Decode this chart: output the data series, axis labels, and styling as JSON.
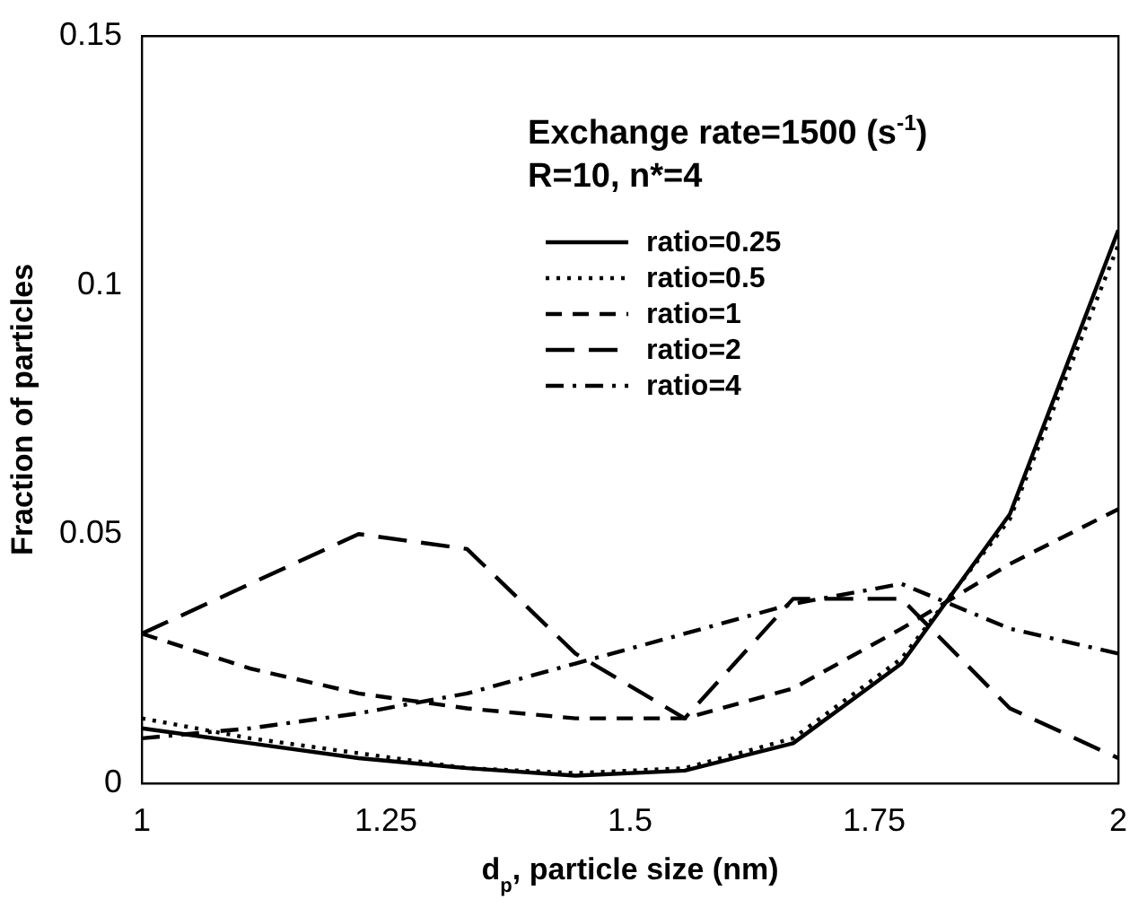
{
  "chart_data": {
    "type": "line",
    "xlabel": "d$_{p}$, particle size (nm)",
    "ylabel": "Fraction of particles",
    "x": [
      1,
      1.111,
      1.222,
      1.333,
      1.444,
      1.556,
      1.667,
      1.778,
      1.889,
      2
    ],
    "xlim": [
      1,
      2
    ],
    "xticks": [
      1,
      1.25,
      1.5,
      1.75,
      2
    ],
    "ylim": [
      0,
      0.15
    ],
    "yticks": [
      0,
      0.05,
      0.1,
      0.15
    ],
    "grid": false,
    "legend": "top right",
    "marker": "none",
    "annotations": [
      "Exchange rate=1500 (s$^{-1}$)",
      "R=10, n*=4"
    ],
    "series": [
      {
        "name": "ratio=0.25",
        "color": "#000000",
        "line_style": "solid",
        "values": [
          0.011,
          0.008,
          0.005,
          0.003,
          0.0015,
          0.0025,
          0.008,
          0.024,
          0.054,
          0.111
        ]
      },
      {
        "name": "ratio=0.5",
        "color": "#000000",
        "line_style": "dotted",
        "values": [
          0.013,
          0.009,
          0.006,
          0.003,
          0.002,
          0.003,
          0.009,
          0.025,
          0.053,
          0.108
        ]
      },
      {
        "name": "ratio=1",
        "color": "#000000",
        "line_style": "dashed",
        "values": [
          0.03,
          0.023,
          0.018,
          0.015,
          0.013,
          0.013,
          0.019,
          0.031,
          0.044,
          0.055
        ]
      },
      {
        "name": "ratio=2",
        "color": "#000000",
        "line_style": "longdash",
        "values": [
          0.03,
          0.04,
          0.05,
          0.047,
          0.026,
          0.013,
          0.037,
          0.037,
          0.015,
          0.005
        ]
      },
      {
        "name": "ratio=4",
        "color": "#000000",
        "line_style": "dashdot",
        "values": [
          0.009,
          0.011,
          0.014,
          0.018,
          0.024,
          0.03,
          0.036,
          0.04,
          0.031,
          0.026
        ]
      }
    ]
  }
}
